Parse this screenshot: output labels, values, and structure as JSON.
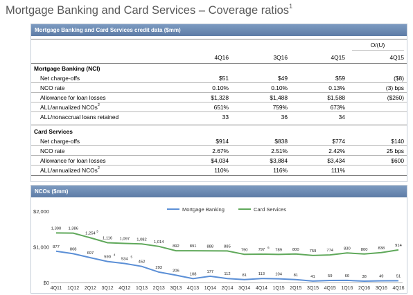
{
  "title": {
    "text": "Mortgage Banking and Card Services – Coverage ratios",
    "sup": "1"
  },
  "table": {
    "header": "Mortgage Banking and Card Services credit data ($mm)",
    "ou_header": "O/(U)",
    "columns": [
      "4Q16",
      "3Q16",
      "4Q15",
      "4Q15"
    ],
    "sections": [
      {
        "name": "Mortgage Banking (NCI)",
        "rows": [
          {
            "label": "Net charge-offs",
            "values": [
              "$51",
              "$49",
              "$59",
              "($8)"
            ]
          },
          {
            "label": "NCO rate",
            "values": [
              "0.10%",
              "0.10%",
              "0.13%",
              "(3) bps"
            ]
          },
          {
            "label": "Allowance for loan losses",
            "values": [
              "$1,328",
              "$1,488",
              "$1,588",
              "($260)"
            ]
          },
          {
            "label": "ALL/annualized NCOs",
            "sup": "2",
            "values": [
              "651%",
              "759%",
              "673%",
              ""
            ]
          },
          {
            "label": "ALL/nonaccrual loans retained",
            "values": [
              "33",
              "36",
              "34",
              ""
            ]
          }
        ]
      },
      {
        "name": "Card Services",
        "rows": [
          {
            "label": "Net charge-offs",
            "values": [
              "$914",
              "$838",
              "$774",
              "$140"
            ]
          },
          {
            "label": "NCO rate",
            "values": [
              "2.67%",
              "2.51%",
              "2.42%",
              "25 bps"
            ]
          },
          {
            "label": "Allowance for loan losses",
            "values": [
              "$4,034",
              "$3,884",
              "$3,434",
              "$600"
            ]
          },
          {
            "label": "ALL/annualized NCOs",
            "sup": "2",
            "values": [
              "110%",
              "116%",
              "111%",
              ""
            ]
          }
        ]
      }
    ]
  },
  "chart_panel": {
    "header": "NCOs ($mm)"
  },
  "chart_data": {
    "type": "line",
    "x": [
      "4Q11",
      "1Q12",
      "2Q12",
      "3Q12",
      "4Q12",
      "1Q13",
      "2Q13",
      "3Q13",
      "4Q13",
      "1Q14",
      "2Q14",
      "3Q14",
      "4Q14",
      "1Q15",
      "2Q15",
      "3Q15",
      "4Q15",
      "1Q16",
      "2Q16",
      "3Q16",
      "4Q16"
    ],
    "ylim": [
      0,
      2000
    ],
    "yticks": [
      0,
      1000,
      2000
    ],
    "ytick_labels": [
      "$0",
      "$1,000",
      "$2,000"
    ],
    "legend_position": "top",
    "grid": false,
    "series": [
      {
        "name": "Mortgage Banking",
        "color": "#5b8fd6",
        "values": [
          877,
          808,
          697,
          590,
          534,
          452,
          293,
          206,
          108,
          177,
          112,
          81,
          113,
          104,
          81,
          41,
          59,
          60,
          38,
          49,
          51
        ],
        "labels": [
          "877",
          "808",
          "697",
          "590",
          "534",
          "452",
          "293",
          "206",
          "108",
          "177",
          "112",
          "81",
          "113",
          "104",
          "81",
          "41",
          "59",
          "60",
          "38",
          "49",
          "51"
        ],
        "footnotes": {
          "3": "4",
          "4": "5"
        }
      },
      {
        "name": "Card Services",
        "color": "#5fa85a",
        "values": [
          1390,
          1386,
          1254,
          1116,
          1097,
          1082,
          1014,
          892,
          891,
          888,
          885,
          790,
          797,
          789,
          800,
          759,
          774,
          830,
          800,
          838,
          914
        ],
        "labels": [
          "1,390",
          "1,386",
          "1,254",
          "1,116",
          "1,097",
          "1,082",
          "1,014",
          "892",
          "891",
          "888",
          "885",
          "790",
          "797",
          "789",
          "800",
          "759",
          "774",
          "830",
          "800",
          "838",
          "914"
        ],
        "footnotes": {
          "2": "3",
          "12": "6"
        }
      }
    ]
  }
}
